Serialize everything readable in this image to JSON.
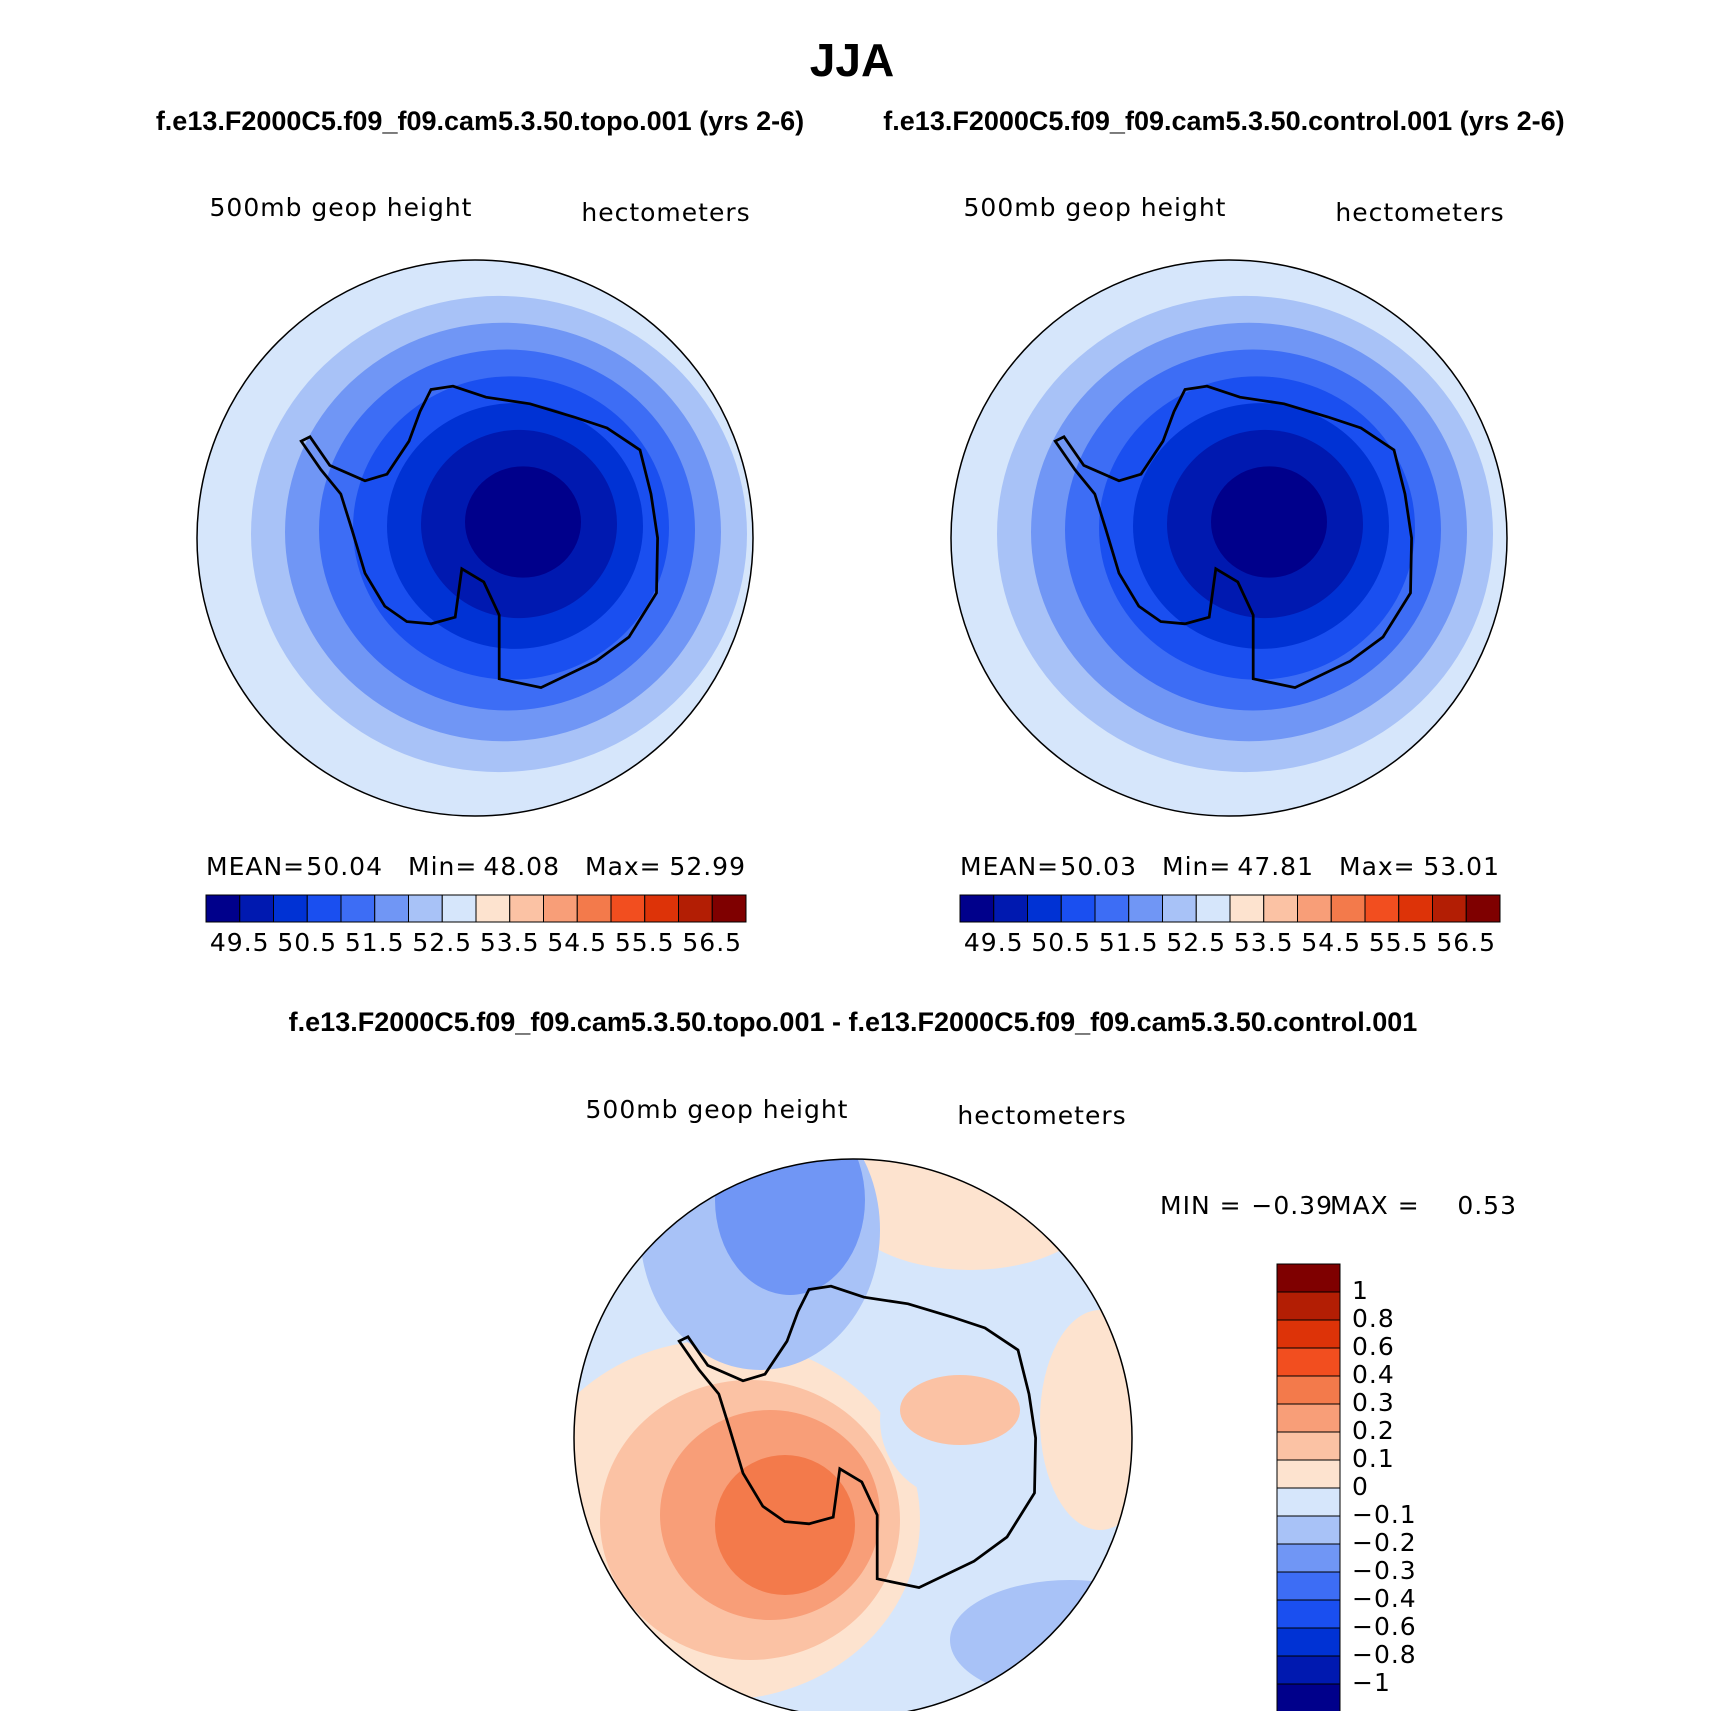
{
  "title": "JJA",
  "panels": [
    {
      "subtitle": "f.e13.F2000C5.f09_f09.cam5.3.50.topo.001 (yrs 2-6)",
      "variable": "500mb  geop  height",
      "units": "hectometers",
      "stats": [
        {
          "label": "MEAN=",
          "value": 50.04
        },
        {
          "label": "Min=",
          "value": 48.08
        },
        {
          "label": "Max=",
          "value": 52.99
        }
      ],
      "colorbar": {
        "colors": [
          "#00008b",
          "#0019b0",
          "#0032d4",
          "#1a4ff0",
          "#3d6df5",
          "#7096f5",
          "#a8c2f7",
          "#d6e6fb",
          "#fde3cf",
          "#fbc2a4",
          "#f89e78",
          "#f37a4b",
          "#f24e1f",
          "#dd3308",
          "#b31e04",
          "#7f0000"
        ],
        "labels": [
          49.5,
          50.5,
          51.5,
          52.5,
          53.5,
          54.5,
          55.5,
          56.5
        ]
      }
    },
    {
      "subtitle": "f.e13.F2000C5.f09_f09.cam5.3.50.control.001 (yrs 2-6)",
      "variable": "500mb  geop  height",
      "units": "hectometers",
      "stats": [
        {
          "label": "MEAN=",
          "value": 50.03
        },
        {
          "label": "Min=",
          "value": 47.81
        },
        {
          "label": "Max=",
          "value": 53.01
        }
      ],
      "colorbar": {
        "colors": [
          "#00008b",
          "#0019b0",
          "#0032d4",
          "#1a4ff0",
          "#3d6df5",
          "#7096f5",
          "#a8c2f7",
          "#d6e6fb",
          "#fde3cf",
          "#fbc2a4",
          "#f89e78",
          "#f37a4b",
          "#f24e1f",
          "#dd3308",
          "#b31e04",
          "#7f0000"
        ],
        "labels": [
          49.5,
          50.5,
          51.5,
          52.5,
          53.5,
          54.5,
          55.5,
          56.5
        ]
      }
    }
  ],
  "difference": {
    "subtitle": "f.e13.F2000C5.f09_f09.cam5.3.50.topo.001 - f.e13.F2000C5.f09_f09.cam5.3.50.control.001",
    "variable": "500mb  geop  height",
    "units": "hectometers",
    "stats": [
      {
        "label": "MIN =",
        "value": -0.39,
        "value_label": "−0.39"
      },
      {
        "label": "MAX =",
        "value": 0.53
      }
    ],
    "colorbar": {
      "colors": [
        "#00008b",
        "#0019b0",
        "#0032d4",
        "#1a4ff0",
        "#3d6df5",
        "#7096f5",
        "#a8c2f7",
        "#d6e6fb",
        "#fde3cf",
        "#fbc2a4",
        "#f89e78",
        "#f37a4b",
        "#f24e1f",
        "#dd3308",
        "#b31e04",
        "#7f0000"
      ],
      "labels": [
        {
          "value": -1,
          "label": "−1"
        },
        {
          "value": -0.8,
          "label": "−0.8"
        },
        {
          "value": -0.6,
          "label": "−0.6"
        },
        {
          "value": -0.4,
          "label": "−0.4"
        },
        {
          "value": -0.3,
          "label": "−0.3"
        },
        {
          "value": -0.2,
          "label": "−0.2"
        },
        {
          "value": -0.1,
          "label": "−0.1"
        },
        0,
        0.1,
        0.2,
        0.3,
        0.4,
        0.6,
        0.8,
        1
      ]
    }
  }
}
